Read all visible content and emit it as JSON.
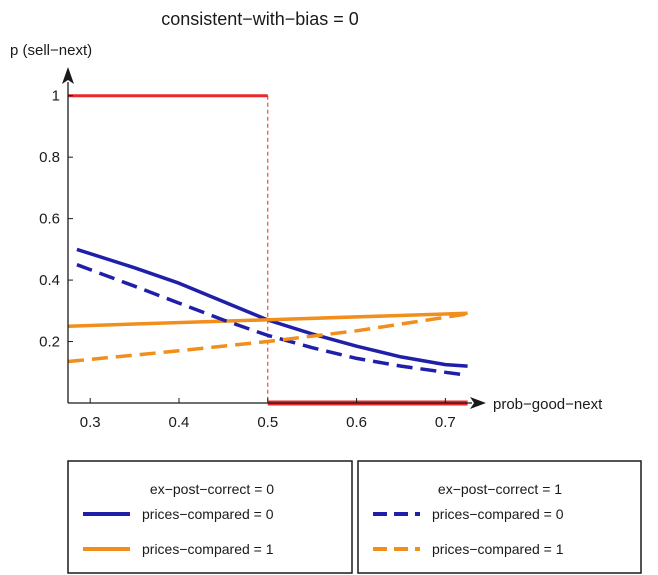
{
  "chart_data": {
    "type": "line",
    "title": "consistent−with−bias = 0",
    "xlabel": "prob−good−next",
    "ylabel": "p (sell−next)",
    "xlim": [
      0.275,
      0.73
    ],
    "ylim": [
      0,
      1.1
    ],
    "xticks": [
      "0.3",
      "0.4",
      "0.5",
      "0.6",
      "0.7"
    ],
    "yticks": [
      "0.2",
      "0.4",
      "0.6",
      "0.8",
      "1"
    ],
    "grid": false,
    "threshold": {
      "x": 0.5,
      "before": {
        "x": [
          0.275,
          0.5
        ],
        "y": [
          1,
          1
        ]
      },
      "after": {
        "x": [
          0.5,
          0.725
        ],
        "y": [
          0,
          0
        ]
      },
      "color": "#e8282a"
    },
    "series": [
      {
        "name": "prices−compared = 0",
        "group": "ex−post−correct = 0",
        "color": "#1f1fa8",
        "dashed": false,
        "x": [
          0.285,
          0.35,
          0.4,
          0.45,
          0.5,
          0.55,
          0.6,
          0.65,
          0.7,
          0.725
        ],
        "y": [
          0.5,
          0.44,
          0.39,
          0.33,
          0.27,
          0.225,
          0.185,
          0.15,
          0.125,
          0.12
        ]
      },
      {
        "name": "prices−compared = 1",
        "group": "ex−post−correct = 0",
        "color": "#f28e1c",
        "dashed": false,
        "x": [
          0.275,
          0.725
        ],
        "y": [
          0.25,
          0.292
        ]
      },
      {
        "name": "prices−compared = 0",
        "group": "ex−post−correct = 1",
        "color": "#1f1fa8",
        "dashed": true,
        "x": [
          0.285,
          0.35,
          0.4,
          0.45,
          0.5,
          0.55,
          0.6,
          0.65,
          0.7,
          0.725
        ],
        "y": [
          0.45,
          0.38,
          0.325,
          0.27,
          0.22,
          0.18,
          0.145,
          0.12,
          0.1,
          0.09
        ]
      },
      {
        "name": "prices−compared = 1",
        "group": "ex−post−correct = 1",
        "color": "#f28e1c",
        "dashed": true,
        "x": [
          0.275,
          0.4,
          0.5,
          0.6,
          0.725
        ],
        "y": [
          0.135,
          0.17,
          0.2,
          0.235,
          0.29
        ]
      }
    ],
    "legend": {
      "placement": "bottom",
      "groups": [
        {
          "title": "ex−post−correct = 0",
          "items": [
            {
              "label": "prices−compared = 0",
              "color": "#1f1fa8",
              "dashed": false
            },
            {
              "label": "prices−compared = 1",
              "color": "#f28e1c",
              "dashed": false
            }
          ]
        },
        {
          "title": "ex−post−correct = 1",
          "items": [
            {
              "label": "prices−compared = 0",
              "color": "#1f1fa8",
              "dashed": true
            },
            {
              "label": "prices−compared = 1",
              "color": "#f28e1c",
              "dashed": true
            }
          ]
        }
      ]
    }
  }
}
